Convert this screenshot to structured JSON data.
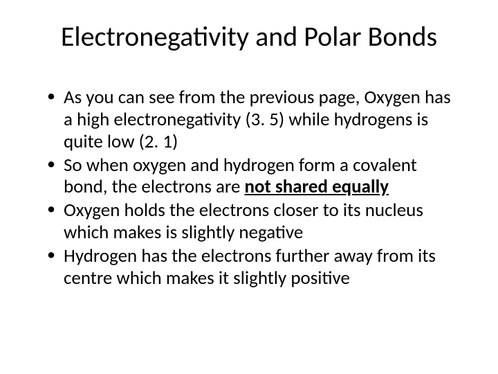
{
  "background_color": "#ffffff",
  "text_color": "#000000",
  "font_family": "Calibri",
  "title": {
    "text": "Electronegativity and Polar Bonds",
    "fontsize": 40,
    "weight": "normal",
    "align": "center"
  },
  "bullets": {
    "fontsize": 27,
    "marker": "•",
    "items": [
      {
        "pre": "As you can see from the previous page, Oxygen has a high electronegativity (3. 5) while hydrogens is quite low (2. 1)",
        "emph": "",
        "post": ""
      },
      {
        "pre": "So when oxygen and hydrogen form a covalent bond, the electrons are ",
        "emph": "not shared equally",
        "post": ""
      },
      {
        "pre": "Oxygen holds the electrons closer to its nucleus which makes is slightly negative",
        "emph": "",
        "post": ""
      },
      {
        "pre": "Hydrogen has the electrons further away from its centre which makes it slightly positive",
        "emph": "",
        "post": ""
      }
    ]
  }
}
